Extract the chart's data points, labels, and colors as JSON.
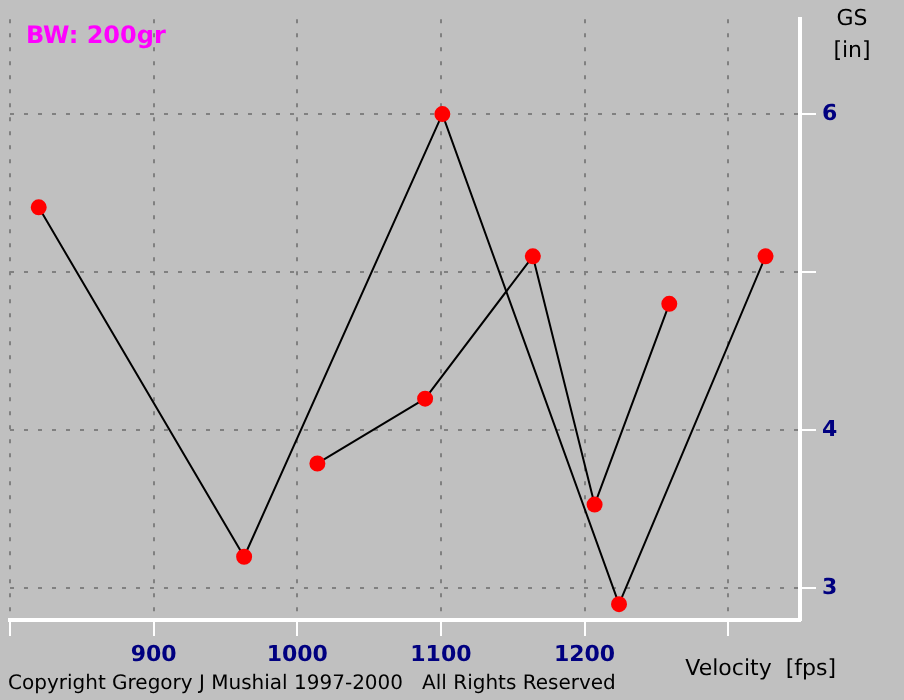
{
  "chart_data": {
    "type": "line",
    "title": "BW: 200gr",
    "xlabel": "Velocity  [fps]",
    "ylabel": "GS [in]",
    "annotations": [
      "Copyright Gregory J Mushial 1997-2000   All Rights Reserved"
    ],
    "xlim": [
      800,
      1350
    ],
    "xticks": [
      {
        "value": 800,
        "label": null
      },
      900,
      1000,
      1100,
      1200,
      {
        "value": 1300,
        "label": null
      }
    ],
    "ylim": [
      2.8,
      6.6
    ],
    "yticks": [
      3,
      4,
      {
        "value": 5,
        "label": null
      },
      6
    ],
    "grid": true,
    "legend": false,
    "marker": "circle",
    "line_style": "solid",
    "series": [
      {
        "color": "#ff0000",
        "x": [
          820,
          963,
          1101,
          1224,
          1326
        ],
        "values": [
          5.41,
          3.2,
          6.0,
          2.9,
          5.1
        ]
      },
      {
        "color": "#ff0000",
        "x": [
          1014,
          1089,
          1164,
          1207,
          1259
        ],
        "values": [
          3.79,
          4.2,
          5.1,
          3.53,
          4.8
        ]
      }
    ]
  }
}
